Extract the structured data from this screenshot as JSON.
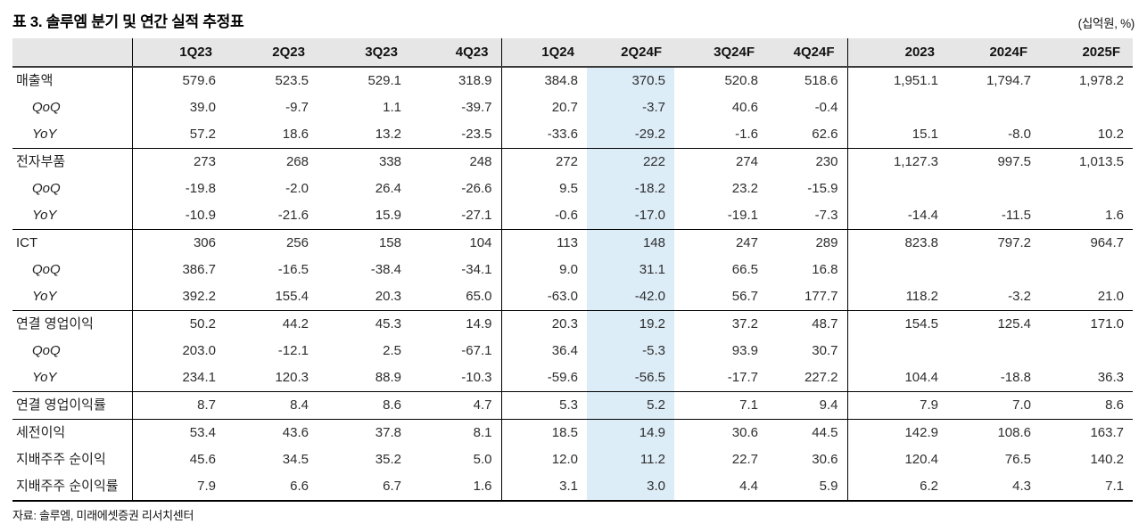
{
  "title": "표 3. 솔루엠 분기 및 연간 실적 추정표",
  "unit_label": "(십억원, %)",
  "source": "자료: 솔루엠, 미래에셋증권 리서치센터",
  "colors": {
    "header_bg": "#e6e6e6",
    "highlight_column_bg": "#ddedf8",
    "border": "#000000"
  },
  "table": {
    "columns": [
      "",
      "1Q23",
      "2Q23",
      "3Q23",
      "4Q23",
      "1Q24",
      "2Q24F",
      "3Q24F",
      "4Q24F",
      "2023",
      "2024F",
      "2025F"
    ],
    "highlight_column": "2Q24F",
    "divider_after_columns": [
      "",
      "4Q23",
      "4Q24F"
    ],
    "rows": [
      {
        "label": "매출액",
        "type": "group",
        "separator": false,
        "values": [
          "579.6",
          "523.5",
          "529.1",
          "318.9",
          "384.8",
          "370.5",
          "520.8",
          "518.6",
          "1,951.1",
          "1,794.7",
          "1,978.2"
        ]
      },
      {
        "label": "QoQ",
        "type": "sub",
        "separator": false,
        "values": [
          "39.0",
          "-9.7",
          "1.1",
          "-39.7",
          "20.7",
          "-3.7",
          "40.6",
          "-0.4",
          "",
          "",
          ""
        ]
      },
      {
        "label": "YoY",
        "type": "sub",
        "separator": false,
        "values": [
          "57.2",
          "18.6",
          "13.2",
          "-23.5",
          "-33.6",
          "-29.2",
          "-1.6",
          "62.6",
          "15.1",
          "-8.0",
          "10.2"
        ]
      },
      {
        "label": "전자부품",
        "type": "group",
        "separator": true,
        "values": [
          "273",
          "268",
          "338",
          "248",
          "272",
          "222",
          "274",
          "230",
          "1,127.3",
          "997.5",
          "1,013.5"
        ]
      },
      {
        "label": "QoQ",
        "type": "sub",
        "separator": false,
        "values": [
          "-19.8",
          "-2.0",
          "26.4",
          "-26.6",
          "9.5",
          "-18.2",
          "23.2",
          "-15.9",
          "",
          "",
          ""
        ]
      },
      {
        "label": "YoY",
        "type": "sub",
        "separator": false,
        "values": [
          "-10.9",
          "-21.6",
          "15.9",
          "-27.1",
          "-0.6",
          "-17.0",
          "-19.1",
          "-7.3",
          "-14.4",
          "-11.5",
          "1.6"
        ]
      },
      {
        "label": "ICT",
        "type": "group",
        "separator": true,
        "values": [
          "306",
          "256",
          "158",
          "104",
          "113",
          "148",
          "247",
          "289",
          "823.8",
          "797.2",
          "964.7"
        ]
      },
      {
        "label": "QoQ",
        "type": "sub",
        "separator": false,
        "values": [
          "386.7",
          "-16.5",
          "-38.4",
          "-34.1",
          "9.0",
          "31.1",
          "66.5",
          "16.8",
          "",
          "",
          ""
        ]
      },
      {
        "label": "YoY",
        "type": "sub",
        "separator": false,
        "values": [
          "392.2",
          "155.4",
          "20.3",
          "65.0",
          "-63.0",
          "-42.0",
          "56.7",
          "177.7",
          "118.2",
          "-3.2",
          "21.0"
        ]
      },
      {
        "label": "연결 영업이익",
        "type": "group",
        "separator": true,
        "values": [
          "50.2",
          "44.2",
          "45.3",
          "14.9",
          "20.3",
          "19.2",
          "37.2",
          "48.7",
          "154.5",
          "125.4",
          "171.0"
        ]
      },
      {
        "label": "QoQ",
        "type": "sub",
        "separator": false,
        "values": [
          "203.0",
          "-12.1",
          "2.5",
          "-67.1",
          "36.4",
          "-5.3",
          "93.9",
          "30.7",
          "",
          "",
          ""
        ]
      },
      {
        "label": "YoY",
        "type": "sub",
        "separator": false,
        "values": [
          "234.1",
          "120.3",
          "88.9",
          "-10.3",
          "-59.6",
          "-56.5",
          "-17.7",
          "227.2",
          "104.4",
          "-18.8",
          "36.3"
        ]
      },
      {
        "label": "연결 영업이익률",
        "type": "group",
        "separator": true,
        "values": [
          "8.7",
          "8.4",
          "8.6",
          "4.7",
          "5.3",
          "5.2",
          "7.1",
          "9.4",
          "7.9",
          "7.0",
          "8.6"
        ]
      },
      {
        "label": "세전이익",
        "type": "group",
        "separator": true,
        "values": [
          "53.4",
          "43.6",
          "37.8",
          "8.1",
          "18.5",
          "14.9",
          "30.6",
          "44.5",
          "142.9",
          "108.6",
          "163.7"
        ]
      },
      {
        "label": "지배주주 순이익",
        "type": "group",
        "separator": false,
        "values": [
          "45.6",
          "34.5",
          "35.2",
          "5.0",
          "12.0",
          "11.2",
          "22.7",
          "30.6",
          "120.4",
          "76.5",
          "140.2"
        ]
      },
      {
        "label": "지배주주 순이익률",
        "type": "group",
        "separator": false,
        "values": [
          "7.9",
          "6.6",
          "6.7",
          "1.6",
          "3.1",
          "3.0",
          "4.4",
          "5.9",
          "6.2",
          "4.3",
          "7.1"
        ]
      }
    ]
  }
}
